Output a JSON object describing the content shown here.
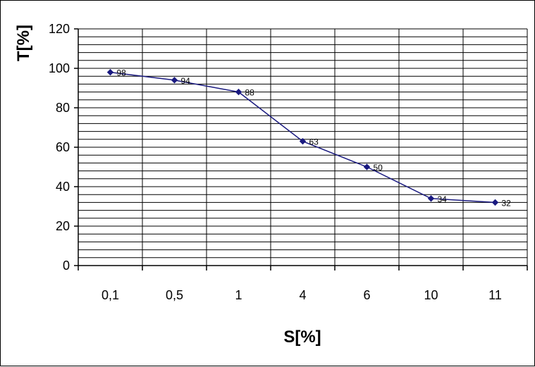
{
  "chart_data": {
    "type": "line",
    "categories": [
      "0,1",
      "0,5",
      "1",
      "4",
      "6",
      "10",
      "11"
    ],
    "series": [
      {
        "values": [
          98,
          94,
          88,
          63,
          50,
          34,
          32
        ]
      }
    ],
    "data_labels": [
      "98",
      "94",
      "88",
      "63",
      "50",
      "34",
      "32"
    ],
    "xlabel": "S[%]",
    "ylabel": "T[%]",
    "ylim": [
      0,
      120
    ],
    "y_ticks": [
      "0",
      "20",
      "40",
      "60",
      "80",
      "100",
      "120"
    ],
    "y_tick_values": [
      0,
      20,
      40,
      60,
      80,
      100,
      120
    ],
    "minor_grid_step": 4,
    "grid": true,
    "line_color": "#1a1a80",
    "marker": "diamond"
  }
}
